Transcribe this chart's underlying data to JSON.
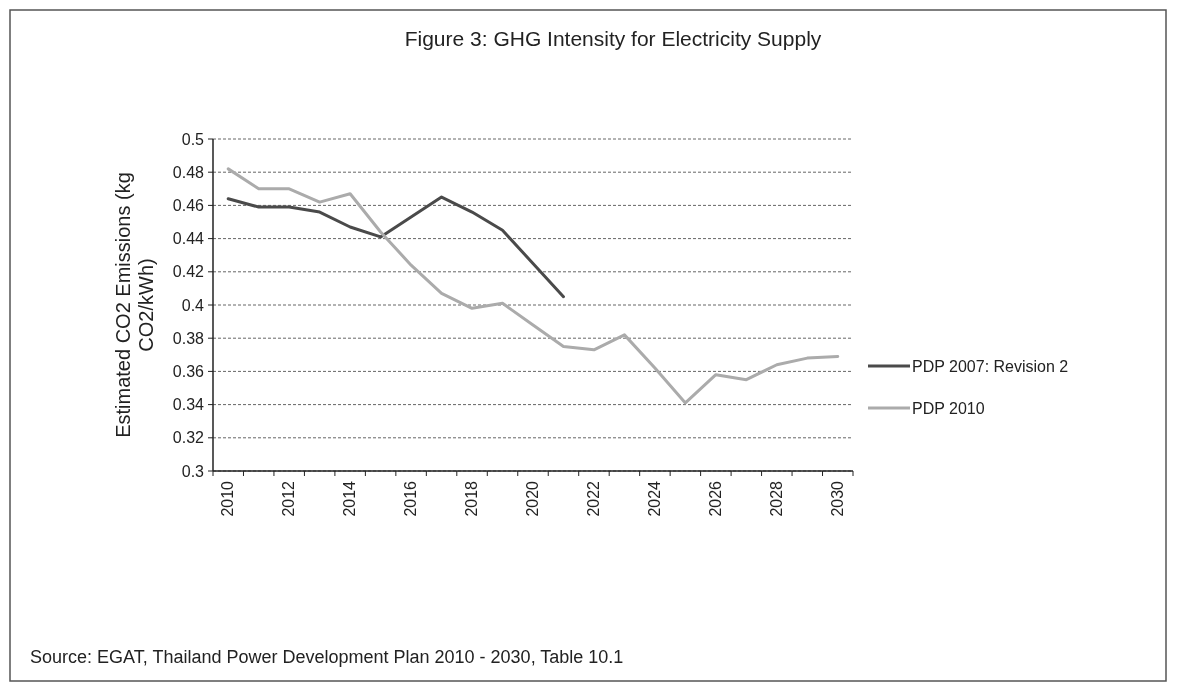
{
  "chart_data": {
    "type": "line",
    "title": "Figure 3:  GHG Intensity for Electricity Supply",
    "ylabel": "Estimated CO2 Emissions (kg CO2/kWh)",
    "categories": [
      "2010",
      null,
      "2012",
      null,
      "2014",
      null,
      "2016",
      null,
      "2018",
      null,
      "2020",
      null,
      "2022",
      null,
      "2024",
      null,
      "2026",
      null,
      "2028",
      null,
      "2030"
    ],
    "series": [
      {
        "name": "PDP 2007: Revision 2",
        "color": "#4a4a4a",
        "values": [
          0.464,
          0.459,
          0.459,
          0.456,
          0.447,
          0.441,
          0.453,
          0.465,
          0.456,
          0.445,
          0.425,
          0.405,
          null,
          null,
          null,
          null,
          null,
          null,
          null,
          null,
          null
        ]
      },
      {
        "name": "PDP 2010",
        "color": "#ababab",
        "values": [
          0.482,
          0.47,
          0.47,
          0.462,
          0.467,
          0.444,
          0.424,
          0.407,
          0.398,
          0.401,
          0.388,
          0.375,
          0.373,
          0.382,
          0.362,
          0.341,
          0.358,
          0.355,
          0.364,
          0.368,
          0.369
        ]
      }
    ],
    "ylim": [
      0.3,
      0.5
    ],
    "yticks": [
      0.3,
      0.32,
      0.34,
      0.36,
      0.38,
      0.4,
      0.42,
      0.44,
      0.46,
      0.48,
      0.5
    ],
    "grid": "y",
    "legend": "right",
    "marker": "none",
    "line_style": "solid",
    "annotations": [
      "Source:  EGAT, Thailand Power Development Plan 2010 - 2030, Table 10.1"
    ]
  }
}
